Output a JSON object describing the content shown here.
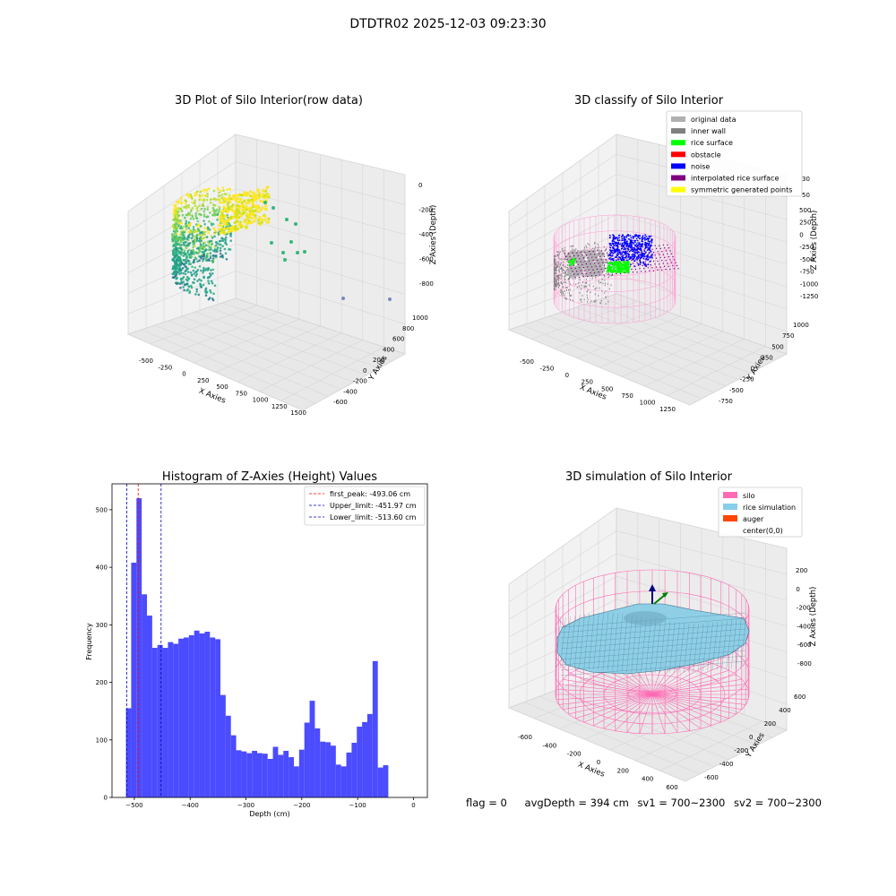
{
  "figure": {
    "title": "DTDTR02 2025-12-03 09:23:30"
  },
  "footer": {
    "flag": "flag = 0",
    "avg_depth": "avgDepth = 394 cm",
    "sv1": "sv1 = 700~2300",
    "sv2": "sv2 = 700~2300"
  },
  "colors": {
    "histogram_bar": "#4b4bff",
    "first_peak_line": "#ff0000",
    "limit_line": "#0000bb",
    "silo_wire": "#ff69b4",
    "rice_simulation": "#87ceeb",
    "auger": "#ff4500"
  },
  "chart_data": [
    {
      "type": "scatter",
      "title": "3D Plot of Silo Interior(row data)",
      "xlabel": "X Axies",
      "ylabel": "Y Axies",
      "zlabel": "Z Axies (Depth)",
      "x_ticks": [
        "-500",
        "-250",
        "0",
        "250",
        "500",
        "750",
        "1000",
        "1250",
        "1500"
      ],
      "y_ticks": [
        "-600",
        "-400",
        "-200",
        "0",
        "200",
        "400",
        "600",
        "800",
        "1000"
      ],
      "z_ticks": [
        "0",
        "-200",
        "-400",
        "-600",
        "-800"
      ],
      "colormap": "viridis"
    },
    {
      "type": "scatter",
      "title": "3D classify of Silo Interior",
      "xlabel": "X Axies",
      "ylabel": "Y Axies",
      "zlabel": "Z Axies (Depth)",
      "x_ticks": [
        "-500",
        "-250",
        "0",
        "250",
        "500",
        "750",
        "1000",
        "1250"
      ],
      "y_ticks": [
        "-750",
        "-500",
        "-250",
        "0",
        "250",
        "500",
        "750",
        "1000"
      ],
      "z_ticks": [
        "500",
        "250",
        "0",
        "-250",
        "-500",
        "-750",
        "-1000",
        "-1250"
      ],
      "z_ticks_partial": [
        "30",
        "50"
      ],
      "legend_position": "top-right",
      "legend": [
        {
          "label": "original data",
          "color": "#b0b0b0"
        },
        {
          "label": "inner wall",
          "color": "#808080"
        },
        {
          "label": "rice surface",
          "color": "#00ff00"
        },
        {
          "label": "obstacle",
          "color": "#ff0000"
        },
        {
          "label": "noise",
          "color": "#0000ff"
        },
        {
          "label": "interpolated rice surface",
          "color": "#800080"
        },
        {
          "label": "symmetric generated points",
          "color": "#ffff00"
        }
      ]
    },
    {
      "type": "bar",
      "title": "Histogram of Z-Axies (Height) Values",
      "xlabel": "Depth (cm)",
      "ylabel": "Frequency",
      "xlim": [
        -540,
        25
      ],
      "ylim": [
        0,
        545
      ],
      "x_ticks": [
        -500,
        -400,
        -300,
        -200,
        -100,
        0
      ],
      "y_ticks": [
        0,
        100,
        200,
        300,
        400,
        500
      ],
      "bin_start": -515,
      "bin_width": 9.4,
      "values": [
        155,
        408,
        520,
        353,
        316,
        260,
        265,
        260,
        270,
        267,
        276,
        278,
        282,
        290,
        285,
        288,
        278,
        275,
        178,
        142,
        108,
        82,
        80,
        77,
        81,
        77,
        76,
        67,
        88,
        74,
        81,
        70,
        54,
        83,
        130,
        168,
        120,
        97,
        96,
        90,
        57,
        54,
        78,
        95,
        123,
        131,
        145,
        237,
        52,
        56
      ],
      "lines": [
        {
          "label": "first_peak: -493.06 cm",
          "x": -493.06,
          "color": "#ff0000"
        },
        {
          "label": "Upper_limit: -451.97 cm",
          "x": -451.97,
          "color": "#0000bb"
        },
        {
          "label": "Lower_limit: -513.60 cm",
          "x": -513.6,
          "color": "#0000bb"
        }
      ],
      "legend_position": "top-right"
    },
    {
      "type": "surface",
      "title": "3D simulation of Silo Interior",
      "xlabel": "X Axies",
      "ylabel": "Y Axies",
      "zlabel": "Z Axies (Depth)",
      "x_ticks": [
        "-600",
        "-400",
        "-200",
        "0",
        "200",
        "400",
        "600"
      ],
      "y_ticks": [
        "-600",
        "-400",
        "-200",
        "0",
        "200",
        "400",
        "600"
      ],
      "z_ticks": [
        "200",
        "0",
        "-200",
        "-400",
        "-600",
        "-800"
      ],
      "legend_position": "top-right",
      "legend": [
        {
          "label": "silo",
          "color": "#ff69b4"
        },
        {
          "label": "rice simulation",
          "color": "#87ceeb"
        },
        {
          "label": "auger",
          "color": "#ff4500"
        },
        {
          "label": "center(0,0)",
          "color": ""
        }
      ]
    }
  ]
}
